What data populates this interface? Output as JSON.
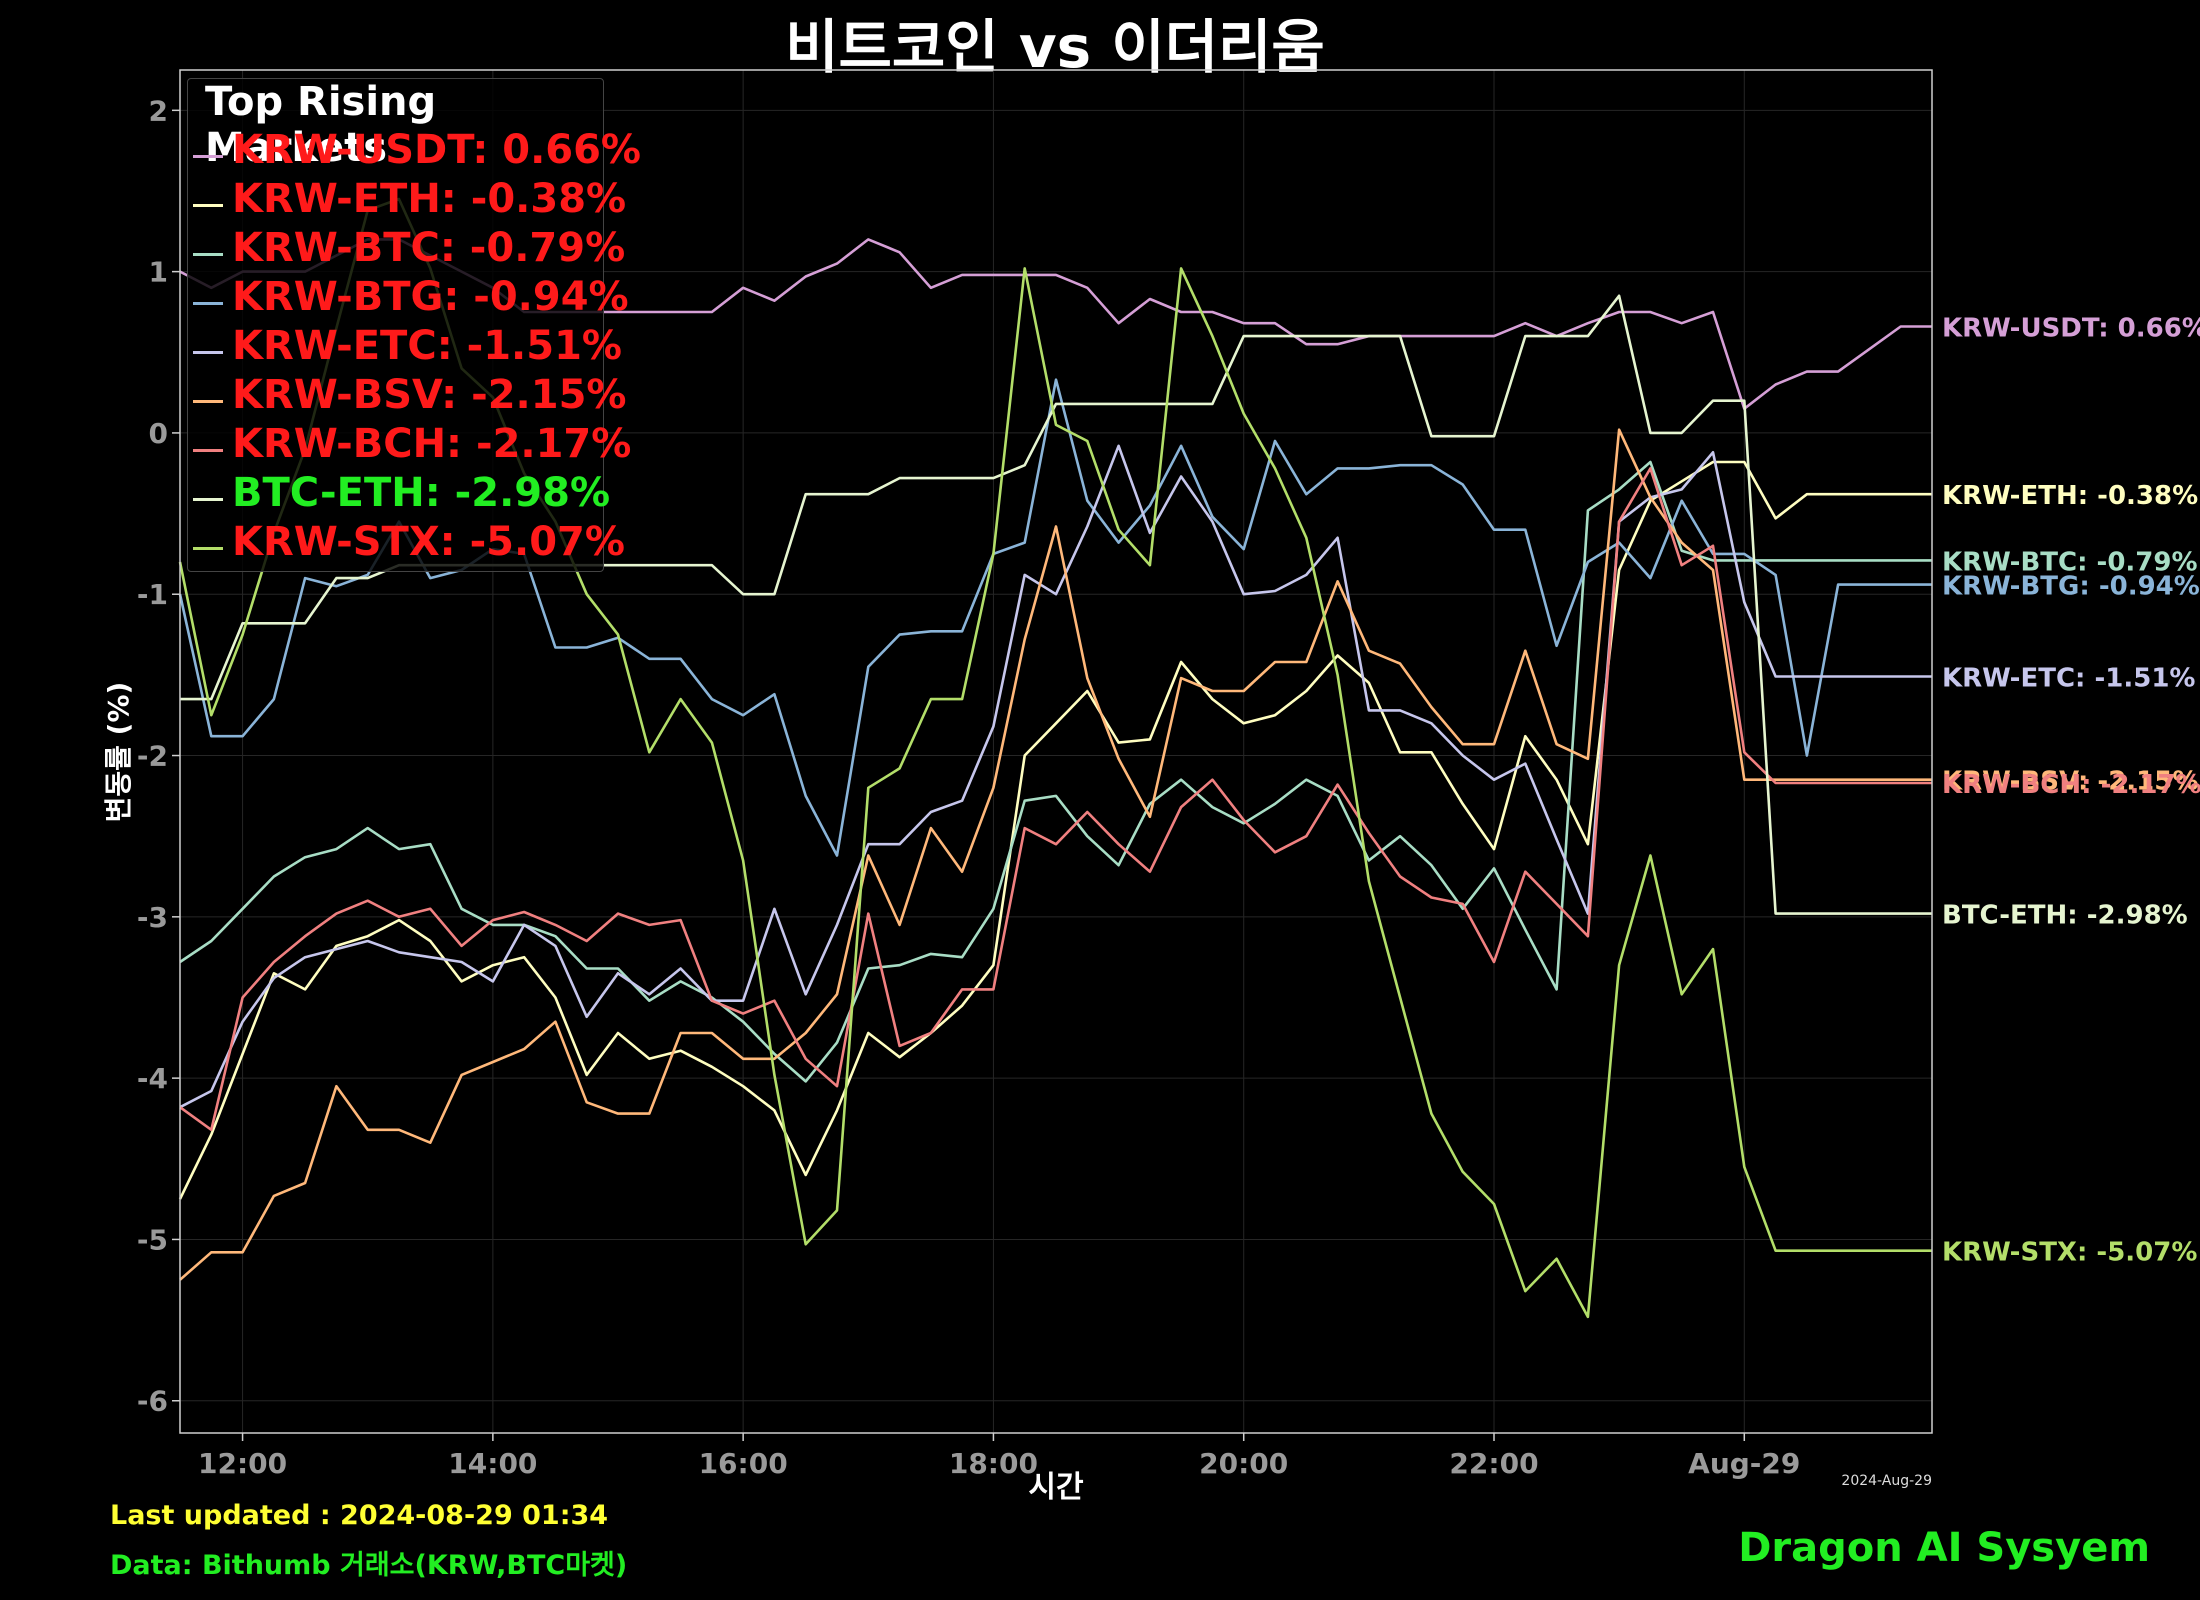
{
  "title": "비트코인 vs 이더리움",
  "chart_data": {
    "type": "line",
    "title": "비트코인 vs 이더리움",
    "xlabel": "시간",
    "ylabel": "변동률 (%)",
    "x": [
      "11:30",
      "11:45",
      "12:00",
      "12:15",
      "12:30",
      "12:45",
      "13:00",
      "13:15",
      "13:30",
      "13:45",
      "14:00",
      "14:15",
      "14:30",
      "14:45",
      "15:00",
      "15:15",
      "15:30",
      "15:45",
      "16:00",
      "16:15",
      "16:30",
      "16:45",
      "17:00",
      "17:15",
      "17:30",
      "17:45",
      "18:00",
      "18:15",
      "18:30",
      "18:45",
      "19:00",
      "19:15",
      "19:30",
      "19:45",
      "20:00",
      "20:15",
      "20:30",
      "20:45",
      "21:00",
      "21:15",
      "21:30",
      "21:45",
      "22:00",
      "22:15",
      "22:30",
      "22:45",
      "23:00",
      "23:15",
      "23:30",
      "23:45",
      "00:00",
      "00:15",
      "00:30",
      "00:45",
      "01:00",
      "01:15",
      "01:30"
    ],
    "x_tick_labels": [
      "12:00",
      "14:00",
      "16:00",
      "18:00",
      "20:00",
      "22:00",
      "Aug-29"
    ],
    "x_offset_label": "2024-Aug-29",
    "y_ticks": [
      2,
      1,
      0,
      -1,
      -2,
      -3,
      -4,
      -5,
      -6
    ],
    "ylim": [
      -6.2,
      2.25
    ],
    "grid": true,
    "legend_title": "Top Rising Markets",
    "legend_position": "top-left",
    "series": [
      {
        "name": "KRW-USDT",
        "end_label": "KRW-USDT: 0.66%",
        "legend_label": "KRW-USDT: 0.66%",
        "legend_color": "#ff1a1a",
        "color": "#d59fd6",
        "values": [
          1.0,
          0.9,
          1.0,
          1.0,
          1.0,
          1.1,
          1.2,
          1.2,
          1.1,
          1.0,
          0.9,
          0.75,
          0.75,
          0.75,
          0.75,
          0.75,
          0.75,
          0.75,
          0.9,
          0.82,
          0.97,
          1.05,
          1.2,
          1.12,
          0.9,
          0.98,
          0.98,
          0.98,
          0.98,
          0.9,
          0.68,
          0.83,
          0.75,
          0.75,
          0.68,
          0.68,
          0.55,
          0.55,
          0.6,
          0.6,
          0.6,
          0.6,
          0.6,
          0.68,
          0.6,
          0.68,
          0.75,
          0.75,
          0.68,
          0.75,
          0.15,
          0.3,
          0.38,
          0.38,
          0.52,
          0.66,
          0.66
        ]
      },
      {
        "name": "KRW-ETH",
        "end_label": "KRW-ETH: -0.38%",
        "legend_label": "KRW-ETH: -0.38%",
        "legend_color": "#ff1a1a",
        "color": "#fffec0",
        "values": [
          -4.75,
          -4.35,
          -3.85,
          -3.35,
          -3.45,
          -3.18,
          -3.12,
          -3.02,
          -3.15,
          -3.4,
          -3.3,
          -3.25,
          -3.5,
          -3.98,
          -3.72,
          -3.88,
          -3.83,
          -3.93,
          -4.05,
          -4.2,
          -4.6,
          -4.2,
          -3.72,
          -3.87,
          -3.72,
          -3.55,
          -3.3,
          -2.0,
          -1.8,
          -1.6,
          -1.92,
          -1.9,
          -1.42,
          -1.65,
          -1.8,
          -1.75,
          -1.6,
          -1.38,
          -1.55,
          -1.98,
          -1.98,
          -2.3,
          -2.58,
          -1.88,
          -2.15,
          -2.55,
          -0.85,
          -0.42,
          -0.3,
          -0.18,
          -0.18,
          -0.53,
          -0.38,
          -0.38,
          -0.38,
          -0.38,
          -0.38
        ]
      },
      {
        "name": "KRW-BTC",
        "end_label": "KRW-BTC: -0.79%",
        "legend_label": "KRW-BTC: -0.79%",
        "legend_color": "#ff1a1a",
        "color": "#a8ddc5",
        "values": [
          -3.28,
          -3.15,
          -2.95,
          -2.75,
          -2.63,
          -2.58,
          -2.45,
          -2.58,
          -2.55,
          -2.95,
          -3.05,
          -3.05,
          -3.12,
          -3.32,
          -3.32,
          -3.52,
          -3.4,
          -3.5,
          -3.65,
          -3.85,
          -4.02,
          -3.78,
          -3.32,
          -3.3,
          -3.23,
          -3.25,
          -2.95,
          -2.28,
          -2.25,
          -2.5,
          -2.68,
          -2.3,
          -2.15,
          -2.32,
          -2.42,
          -2.3,
          -2.15,
          -2.25,
          -2.65,
          -2.5,
          -2.68,
          -2.95,
          -2.7,
          -3.08,
          -3.45,
          -0.48,
          -0.35,
          -0.18,
          -0.73,
          -0.79,
          -0.79,
          -0.79,
          -0.79,
          -0.79,
          -0.79,
          -0.79,
          -0.79
        ]
      },
      {
        "name": "KRW-BTG",
        "end_label": "KRW-BTG: -0.94%",
        "legend_label": "KRW-BTG: -0.94%",
        "legend_color": "#ff1a1a",
        "color": "#8ab4d8",
        "values": [
          -1.0,
          -1.88,
          -1.88,
          -1.65,
          -0.9,
          -0.95,
          -0.88,
          -0.55,
          -0.9,
          -0.85,
          -0.72,
          -0.75,
          -1.33,
          -1.33,
          -1.27,
          -1.4,
          -1.4,
          -1.65,
          -1.75,
          -1.62,
          -2.25,
          -2.62,
          -1.45,
          -1.25,
          -1.23,
          -1.23,
          -0.75,
          -0.68,
          0.33,
          -0.42,
          -0.68,
          -0.45,
          -0.08,
          -0.52,
          -0.72,
          -0.05,
          -0.38,
          -0.22,
          -0.22,
          -0.2,
          -0.2,
          -0.32,
          -0.6,
          -0.6,
          -1.32,
          -0.8,
          -0.68,
          -0.9,
          -0.42,
          -0.75,
          -0.75,
          -0.88,
          -2.0,
          -0.94,
          -0.94,
          -0.94,
          -0.94
        ]
      },
      {
        "name": "KRW-ETC",
        "end_label": "KRW-ETC: -1.51%",
        "legend_label": "KRW-ETC: -1.51%",
        "legend_color": "#ff1a1a",
        "color": "#c6c6ec",
        "values": [
          -4.18,
          -4.08,
          -3.65,
          -3.38,
          -3.25,
          -3.2,
          -3.15,
          -3.22,
          -3.25,
          -3.28,
          -3.4,
          -3.05,
          -3.18,
          -3.62,
          -3.35,
          -3.48,
          -3.32,
          -3.52,
          -3.52,
          -2.95,
          -3.48,
          -3.05,
          -2.55,
          -2.55,
          -2.35,
          -2.28,
          -1.82,
          -0.88,
          -1.0,
          -0.58,
          -0.08,
          -0.62,
          -0.27,
          -0.55,
          -1.0,
          -0.98,
          -0.88,
          -0.65,
          -1.72,
          -1.72,
          -1.8,
          -2.0,
          -2.15,
          -2.05,
          -2.52,
          -2.98,
          -0.55,
          -0.4,
          -0.35,
          -0.12,
          -1.05,
          -1.51,
          -1.51,
          -1.51,
          -1.51,
          -1.51,
          -1.51
        ]
      },
      {
        "name": "KRW-BSV",
        "end_label": "KRW-BSV: -2.15%",
        "legend_label": "KRW-BSV: -2.15%",
        "legend_color": "#ff1a1a",
        "color": "#ffb87a",
        "values": [
          -5.25,
          -5.08,
          -5.08,
          -4.73,
          -4.65,
          -4.05,
          -4.32,
          -4.32,
          -4.4,
          -3.98,
          -3.9,
          -3.82,
          -3.65,
          -4.15,
          -4.22,
          -4.22,
          -3.72,
          -3.72,
          -3.88,
          -3.88,
          -3.72,
          -3.48,
          -2.62,
          -3.05,
          -2.45,
          -2.72,
          -2.2,
          -1.28,
          -0.58,
          -1.52,
          -2.02,
          -2.38,
          -1.52,
          -1.6,
          -1.6,
          -1.42,
          -1.42,
          -0.92,
          -1.35,
          -1.43,
          -1.7,
          -1.93,
          -1.93,
          -1.35,
          -1.93,
          -2.02,
          0.02,
          -0.4,
          -0.68,
          -0.85,
          -2.15,
          -2.15,
          -2.15,
          -2.15,
          -2.15,
          -2.15,
          -2.15
        ]
      },
      {
        "name": "KRW-BCH",
        "end_label": "KRW-BCH: -2.17%",
        "legend_label": "KRW-BCH: -2.17%",
        "legend_color": "#ff1a1a",
        "color": "#f08080",
        "values": [
          -4.18,
          -4.32,
          -3.5,
          -3.28,
          -3.12,
          -2.98,
          -2.9,
          -3.0,
          -2.95,
          -3.18,
          -3.02,
          -2.97,
          -3.05,
          -3.15,
          -2.98,
          -3.05,
          -3.02,
          -3.52,
          -3.6,
          -3.52,
          -3.88,
          -4.05,
          -2.98,
          -3.8,
          -3.72,
          -3.45,
          -3.45,
          -2.45,
          -2.55,
          -2.35,
          -2.55,
          -2.72,
          -2.32,
          -2.15,
          -2.4,
          -2.6,
          -2.5,
          -2.18,
          -2.48,
          -2.75,
          -2.88,
          -2.92,
          -3.28,
          -2.72,
          -2.92,
          -3.12,
          -0.55,
          -0.22,
          -0.82,
          -0.7,
          -1.98,
          -2.17,
          -2.17,
          -2.17,
          -2.17,
          -2.17,
          -2.17
        ]
      },
      {
        "name": "BTC-ETH",
        "end_label": "BTC-ETH: -2.98%",
        "legend_label": "BTC-ETH: -2.98%",
        "legend_color": "#22ee22",
        "color": "#e6f5d0",
        "values": [
          -1.65,
          -1.65,
          -1.18,
          -1.18,
          -1.18,
          -0.9,
          -0.9,
          -0.82,
          -0.82,
          -0.82,
          -0.82,
          -0.82,
          -0.82,
          -0.82,
          -0.82,
          -0.82,
          -0.82,
          -0.82,
          -1.0,
          -1.0,
          -0.38,
          -0.38,
          -0.38,
          -0.28,
          -0.28,
          -0.28,
          -0.28,
          -0.2,
          0.18,
          0.18,
          0.18,
          0.18,
          0.18,
          0.18,
          0.6,
          0.6,
          0.6,
          0.6,
          0.6,
          0.6,
          -0.02,
          -0.02,
          -0.02,
          0.6,
          0.6,
          0.6,
          0.85,
          0.0,
          0.0,
          0.2,
          0.2,
          -2.98,
          -2.98,
          -2.98,
          -2.98,
          -2.98,
          -2.98
        ]
      },
      {
        "name": "KRW-STX",
        "end_label": "KRW-STX: -5.07%",
        "legend_label": "KRW-STX: -5.07%",
        "legend_color": "#ff1a1a",
        "color": "#b3de69",
        "values": [
          -0.8,
          -1.75,
          -1.25,
          -0.62,
          -0.1,
          0.65,
          1.38,
          1.45,
          1.02,
          0.4,
          0.22,
          -0.25,
          -0.55,
          -1.0,
          -1.25,
          -1.98,
          -1.65,
          -1.92,
          -2.65,
          -3.98,
          -5.03,
          -4.82,
          -2.2,
          -2.08,
          -1.65,
          -1.65,
          -0.75,
          1.02,
          0.05,
          -0.05,
          -0.6,
          -0.82,
          1.02,
          0.6,
          0.12,
          -0.22,
          -0.65,
          -1.5,
          -2.78,
          -3.5,
          -4.22,
          -4.58,
          -4.78,
          -5.32,
          -5.12,
          -5.48,
          -3.3,
          -2.62,
          -3.48,
          -3.2,
          -4.55,
          -5.07,
          -5.07,
          -5.07,
          -5.07,
          -5.07,
          -5.07
        ]
      }
    ]
  },
  "footer": {
    "last_updated": "Last updated : 2024-08-29 01:34",
    "last_updated_color": "#ffff33",
    "source": "Data: Bithumb 거래소(KRW,BTC마켓)",
    "source_color": "#22ee22",
    "brand": "Dragon AI Sysyem",
    "brand_color": "#22ee22"
  }
}
